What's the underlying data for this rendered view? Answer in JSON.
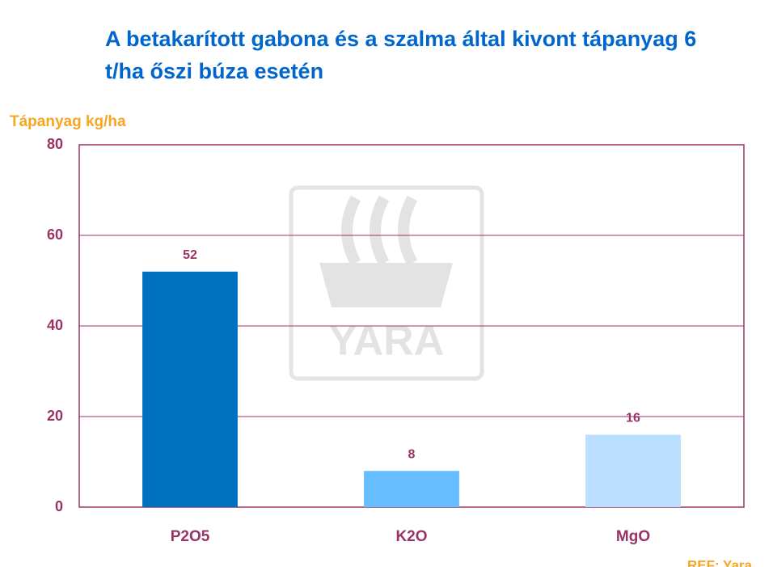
{
  "chart_data": {
    "type": "bar",
    "title": "A betakarított gabona és a szalma által kivont tápanyag 6 t/ha őszi búza esetén",
    "y_label": "Tápanyag kg/ha",
    "categories": [
      "P2O5",
      "K2O",
      "MgO"
    ],
    "values": [
      52,
      8,
      16
    ],
    "colors": [
      "#0070c0",
      "#66bdff",
      "#bbdfff"
    ],
    "ylim": [
      0,
      80
    ],
    "yticks": [
      0,
      20,
      40,
      60,
      80
    ],
    "grid": true,
    "watermark": "YARA",
    "source": "REF: Yara"
  }
}
